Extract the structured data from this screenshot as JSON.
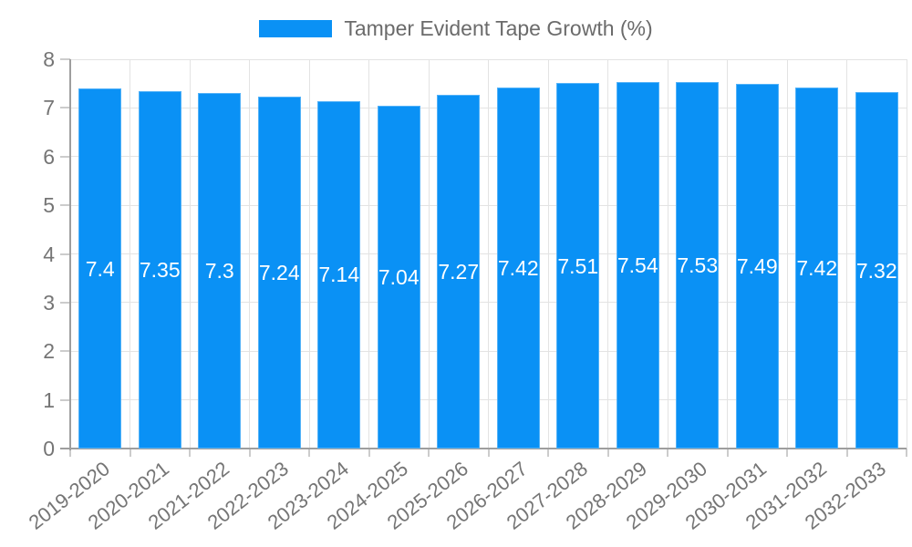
{
  "legend": {
    "label": "Tamper Evident Tape Growth (%)"
  },
  "chart_data": {
    "type": "bar",
    "title": "Tamper Evident Tape Growth (%)",
    "categories": [
      "2019-2020",
      "2020-2021",
      "2021-2022",
      "2022-2023",
      "2023-2024",
      "2024-2025",
      "2025-2026",
      "2026-2027",
      "2027-2028",
      "2028-2029",
      "2029-2030",
      "2030-2031",
      "2031-2032",
      "2032-2033"
    ],
    "values": [
      7.4,
      7.35,
      7.3,
      7.24,
      7.14,
      7.04,
      7.27,
      7.42,
      7.51,
      7.54,
      7.53,
      7.49,
      7.42,
      7.32
    ],
    "value_labels": [
      "7.4",
      "7.35",
      "7.3",
      "7.24",
      "7.14",
      "7.04",
      "7.27",
      "7.42",
      "7.51",
      "7.54",
      "7.53",
      "7.49",
      "7.42",
      "7.32"
    ],
    "xlabel": "",
    "ylabel": "",
    "ylim": [
      0,
      8
    ],
    "yticks": [
      0,
      1,
      2,
      3,
      4,
      5,
      6,
      7,
      8
    ],
    "grid": true,
    "legend_position": "top-center",
    "bar_color": "#0a91f5",
    "bar_label_color": "#ffffff",
    "axis_text_color": "#757575",
    "grid_color": "#e3e3e3",
    "tick_color": "#cccccc",
    "axis_line_color": "#9e9e9e"
  }
}
